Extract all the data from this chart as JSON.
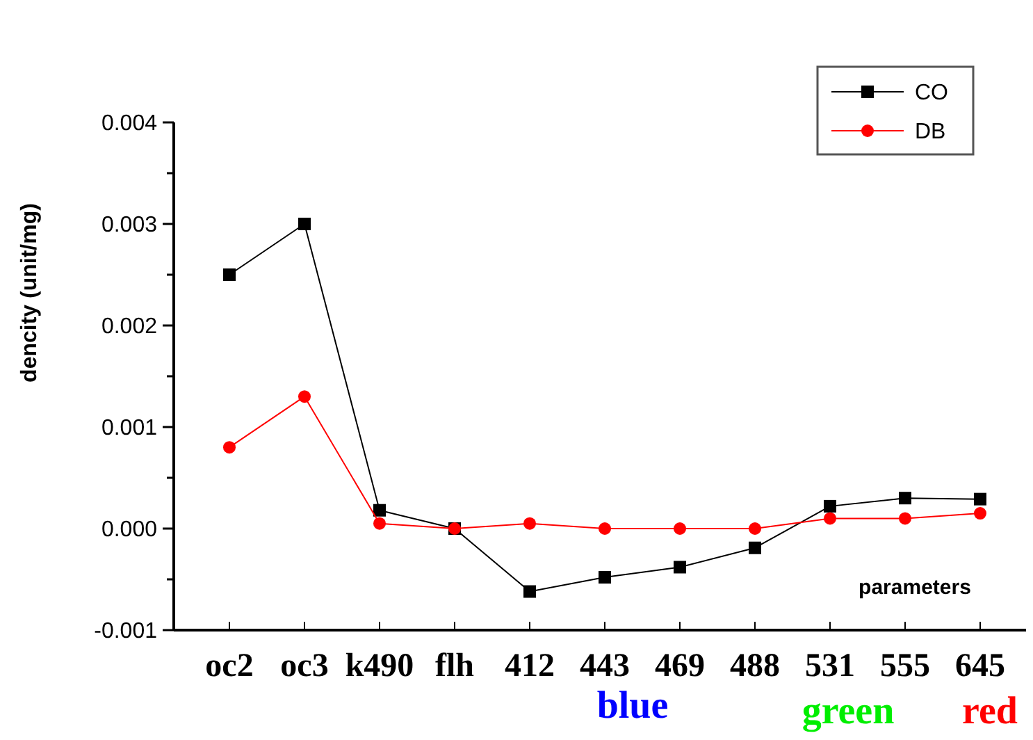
{
  "chart_data": {
    "type": "line",
    "ylabel": "dencity  (unit/mg)",
    "xlabel": "parameters",
    "categories": [
      "oc2",
      "oc3",
      "k490",
      "flh",
      "412",
      "443",
      "469",
      "488",
      "531",
      "555",
      "645"
    ],
    "series": [
      {
        "name": "CO",
        "color": "#000000",
        "marker": "square",
        "values": [
          0.0025,
          0.003,
          0.00018,
          0,
          -0.00062,
          -0.00048,
          -0.00038,
          -0.00019,
          0.00022,
          0.0003,
          0.00029
        ]
      },
      {
        "name": "DB",
        "color": "#ff0000",
        "marker": "circle",
        "values": [
          0.0008,
          0.0013,
          5e-05,
          0,
          5e-05,
          0,
          0,
          0,
          0.0001,
          0.0001,
          0.00015
        ]
      }
    ],
    "ylim": [
      -0.001,
      0.004
    ],
    "yticks": [
      {
        "value": -0.001,
        "label": "-0.001"
      },
      {
        "value": -0.0005,
        "label": null
      },
      {
        "value": 0,
        "label": "0.000"
      },
      {
        "value": 0.0005,
        "label": null
      },
      {
        "value": 0.001,
        "label": "0.001"
      },
      {
        "value": 0.0015,
        "label": null
      },
      {
        "value": 0.002,
        "label": "0.002"
      },
      {
        "value": 0.0025,
        "label": null
      },
      {
        "value": 0.003,
        "label": "0.003"
      },
      {
        "value": 0.0035,
        "label": null
      },
      {
        "value": 0.004,
        "label": "0.004"
      }
    ],
    "annotations": [
      "blue",
      "green",
      "red"
    ],
    "legend": "top right",
    "grid": false,
    "line_style": "solid"
  }
}
